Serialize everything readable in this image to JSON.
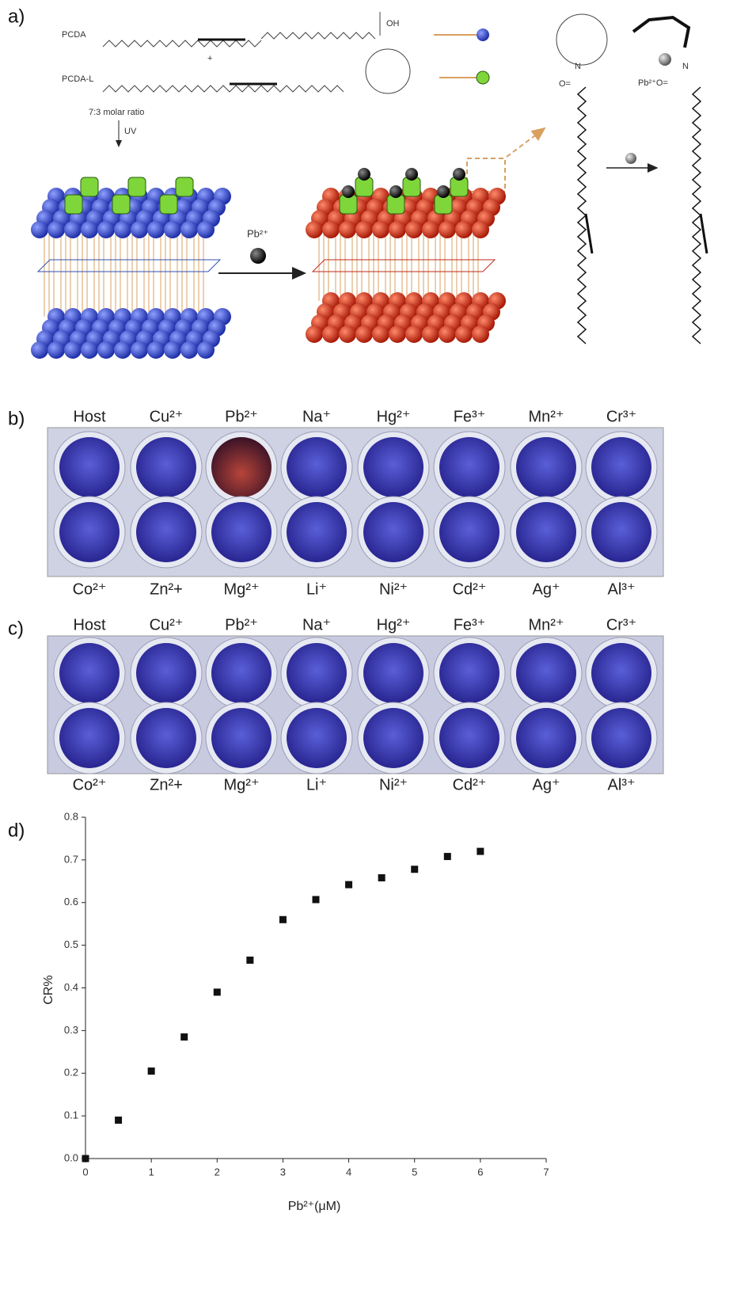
{
  "panel_a": {
    "label": "a)",
    "pcda": "PCDA",
    "plus": "+",
    "pcda_l": "PCDA-L",
    "ratio": "7:3 molar ratio",
    "uv": "UV",
    "oh": "OH",
    "n_left": "N",
    "n_right": "N",
    "o_left": "O=",
    "metal_arrow": "Pb²⁺",
    "complex_label": "Pb²⁺O="
  },
  "panel_b": {
    "label": "b)",
    "top_labels": [
      "Host",
      "Cu²⁺",
      "Pb²⁺",
      "Na⁺",
      "Hg²⁺",
      "Fe³⁺",
      "Mn²⁺",
      "Cr³⁺"
    ],
    "bottom_labels": [
      "Co²⁺",
      "Zn²+",
      "Mg²⁺",
      "Li⁺",
      "Ni²⁺",
      "Cd²⁺",
      "Ag⁺",
      "Al³⁺"
    ]
  },
  "panel_c": {
    "label": "c)",
    "top_labels": [
      "Host",
      "Cu²⁺",
      "Pb²⁺",
      "Na⁺",
      "Hg²⁺",
      "Fe³⁺",
      "Mn²⁺",
      "Cr³⁺"
    ],
    "bottom_labels": [
      "Co²⁺",
      "Zn²+",
      "Mg²⁺",
      "Li⁺",
      "Ni²⁺",
      "Cd²⁺",
      "Ag⁺",
      "Al³⁺"
    ]
  },
  "chart_data": {
    "type": "scatter",
    "panel_label": "d)",
    "x_label": "Pb²⁺(μM)",
    "y_label": "CR%",
    "x": [
      0,
      0.5,
      1,
      1.5,
      2,
      2.5,
      3,
      3.5,
      4,
      4.5,
      5,
      5.5,
      6
    ],
    "values": [
      0,
      0.09,
      0.205,
      0.285,
      0.39,
      0.465,
      0.56,
      0.607,
      0.642,
      0.658,
      0.678,
      0.708,
      0.72
    ],
    "color": "#111",
    "xlim": [
      0,
      7
    ],
    "xticks": [
      0,
      1,
      2,
      3,
      4,
      5,
      6,
      7
    ],
    "ylim": [
      0,
      0.8
    ],
    "yticks": [
      {
        "value": 0,
        "label": "0.0"
      },
      0.1,
      0.2,
      0.3,
      0.4,
      0.5,
      0.6,
      0.7,
      0.8
    ]
  }
}
